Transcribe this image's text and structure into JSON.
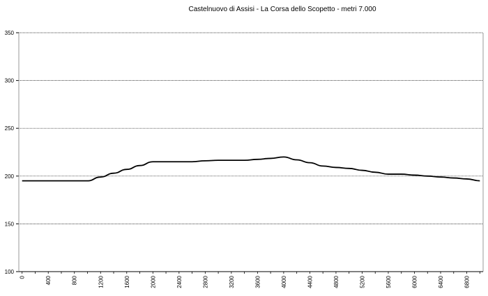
{
  "chart_data": {
    "type": "line",
    "title": "Castelnuovo di Assisi - La Corsa dello Scopetto  - metri 7.000",
    "xlabel": "",
    "ylabel": "",
    "ylim": [
      100,
      350
    ],
    "xlim": [
      0,
      7000
    ],
    "yticks": [
      100,
      150,
      200,
      250,
      300,
      350
    ],
    "xticks": [
      0,
      400,
      800,
      1200,
      1600,
      2000,
      2400,
      2800,
      3200,
      3600,
      4000,
      4400,
      4800,
      5200,
      5600,
      6000,
      6400,
      6800
    ],
    "grid": "horizontal dotted",
    "line_color": "#000000",
    "series": [
      {
        "x": [
          0,
          200,
          400,
          600,
          800,
          1000,
          1200,
          1400,
          1600,
          1800,
          2000,
          2200,
          2400,
          2600,
          2800,
          3000,
          3200,
          3400,
          3600,
          3800,
          4000,
          4200,
          4400,
          4600,
          4800,
          5000,
          5200,
          5400,
          5600,
          5800,
          6000,
          6200,
          6400,
          6600,
          6800,
          7000
        ],
        "y": [
          195,
          195,
          195,
          195,
          195,
          195,
          199,
          203,
          207,
          211,
          215,
          215,
          215,
          215,
          216,
          216.5,
          216.5,
          216.5,
          217.5,
          218.5,
          220,
          217,
          214,
          210.5,
          209,
          208,
          206,
          204,
          202,
          202,
          201,
          200,
          199,
          198,
          197,
          195
        ]
      }
    ]
  }
}
